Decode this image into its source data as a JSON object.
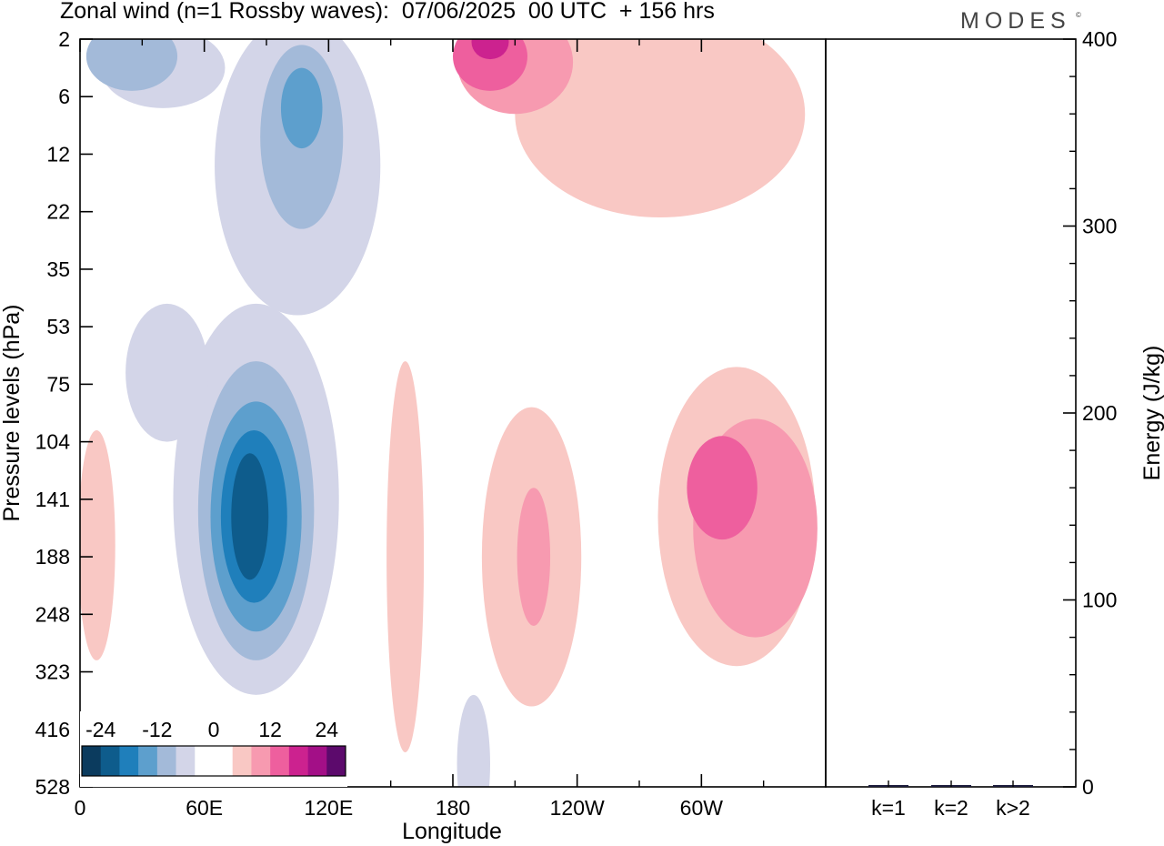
{
  "chart_data": {
    "type": "heatmap",
    "title": "Zonal wind (n=1 Rossby waves):  07/06/2025  00 UTC  + 156 hrs",
    "brand": "MODES",
    "brand_mark": "©",
    "main": {
      "xlabel": "Longitude",
      "ylabel": "Pressure levels (hPa)",
      "x_ticks": [
        "0",
        "60E",
        "120E",
        "180",
        "120W",
        "60W"
      ],
      "y_ticks": [
        "2",
        "6",
        "12",
        "22",
        "35",
        "53",
        "75",
        "104",
        "141",
        "188",
        "248",
        "323",
        "416",
        "528"
      ],
      "colorbar": {
        "levels": [
          "-24",
          "-12",
          "0",
          "12",
          "24"
        ],
        "colors": [
          "#0b3b5e",
          "#0e5c8c",
          "#1f7fbb",
          "#5d9fcd",
          "#a3bad9",
          "#d3d5e8",
          "#ffffff",
          "#ffffff",
          "#f9c8c4",
          "#f79ab0",
          "#ee5f9e",
          "#cc228f",
          "#a30f87",
          "#5c0a6c"
        ]
      },
      "contours": [
        {
          "value": -4,
          "color": "#d3d5e8",
          "lon": 85,
          "lev": 8.0,
          "dlon": 40,
          "dlev": 3.4
        },
        {
          "value": -4,
          "color": "#d3d5e8",
          "lon": 42,
          "lev": 5.8,
          "dlon": 20,
          "dlev": 1.2
        },
        {
          "value": -4,
          "color": "#d3d5e8",
          "lon": 105,
          "lev": 2.2,
          "dlon": 40,
          "dlev": 2.6
        },
        {
          "value": -4,
          "color": "#d3d5e8",
          "lon": 40,
          "lev": 0.5,
          "dlon": 30,
          "dlev": 0.7
        },
        {
          "value": -4,
          "color": "#d3d5e8",
          "lon": 190,
          "lev": 12.6,
          "dlon": 8,
          "dlev": 1.2
        },
        {
          "value": -8,
          "color": "#a3bad9",
          "lon": 85,
          "lev": 8.2,
          "dlon": 28,
          "dlev": 2.6
        },
        {
          "value": -8,
          "color": "#a3bad9",
          "lon": 107,
          "lev": 1.7,
          "dlon": 20,
          "dlev": 1.6
        },
        {
          "value": -8,
          "color": "#a3bad9",
          "lon": 25,
          "lev": 0.3,
          "dlon": 22,
          "dlev": 0.6
        },
        {
          "value": -12,
          "color": "#5d9fcd",
          "lon": 85,
          "lev": 8.3,
          "dlon": 22,
          "dlev": 2.0
        },
        {
          "value": -12,
          "color": "#5d9fcd",
          "lon": 107,
          "lev": 1.2,
          "dlon": 10,
          "dlev": 0.7
        },
        {
          "value": -16,
          "color": "#1f7fbb",
          "lon": 84,
          "lev": 8.3,
          "dlon": 16,
          "dlev": 1.5
        },
        {
          "value": -20,
          "color": "#0e5c8c",
          "lon": 82,
          "lev": 8.3,
          "dlon": 9,
          "dlev": 1.1
        },
        {
          "value": 4,
          "color": "#f9c8c4",
          "lon": 157,
          "lev": 9.0,
          "dlon": 9,
          "dlev": 3.4
        },
        {
          "value": 4,
          "color": "#f9c8c4",
          "lon": 218,
          "lev": 9.0,
          "dlon": 24,
          "dlev": 2.6
        },
        {
          "value": 4,
          "color": "#f9c8c4",
          "lon": 317,
          "lev": 8.3,
          "dlon": 38,
          "dlev": 2.6
        },
        {
          "value": 4,
          "color": "#f9c8c4",
          "lon": 280,
          "lev": 1.3,
          "dlon": 70,
          "dlev": 1.8
        },
        {
          "value": 4,
          "color": "#f9c8c4",
          "lon": 8,
          "lev": 8.8,
          "dlon": 9,
          "dlev": 2.0
        },
        {
          "value": 8,
          "color": "#f79ab0",
          "lon": 326,
          "lev": 8.5,
          "dlon": 30,
          "dlev": 1.9
        },
        {
          "value": 8,
          "color": "#f79ab0",
          "lon": 219,
          "lev": 9.0,
          "dlon": 8,
          "dlev": 1.2
        },
        {
          "value": 8,
          "color": "#f79ab0",
          "lon": 210,
          "lev": 0.4,
          "dlon": 28,
          "dlev": 0.9
        },
        {
          "value": 12,
          "color": "#ee5f9e",
          "lon": 310,
          "lev": 7.8,
          "dlon": 17,
          "dlev": 0.9
        },
        {
          "value": 12,
          "color": "#ee5f9e",
          "lon": 198,
          "lev": 0.3,
          "dlon": 18,
          "dlev": 0.6
        },
        {
          "value": 16,
          "color": "#cc228f",
          "lon": 198,
          "lev": 0.05,
          "dlon": 9,
          "dlev": 0.3
        }
      ]
    },
    "energy": {
      "ylabel": "Energy (J/kg)",
      "ylim": [
        0,
        400
      ],
      "y_ticks": [
        "0",
        "100",
        "200",
        "300",
        "400"
      ],
      "categories": [
        "k=1",
        "k=2",
        "k>2"
      ],
      "values": [
        0.5,
        0.4,
        0.3
      ],
      "bar_color": "#1a1a3a"
    }
  }
}
